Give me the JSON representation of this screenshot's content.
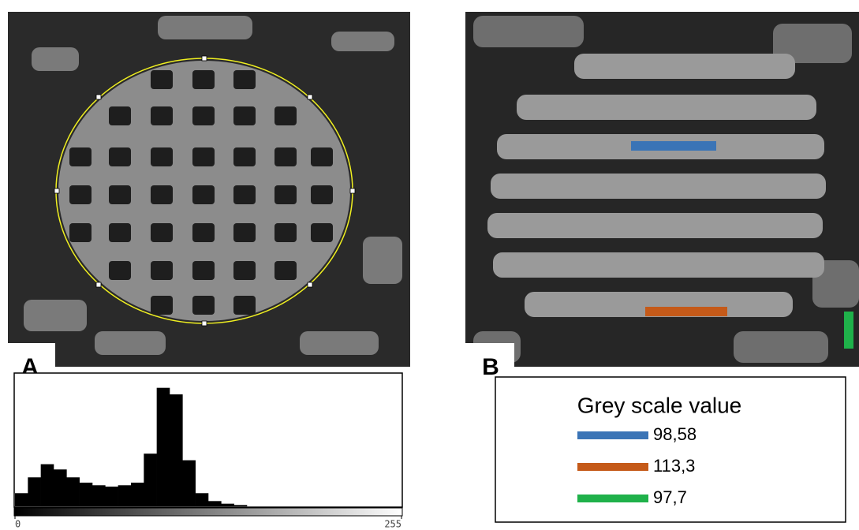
{
  "panels": {
    "a_label": "A",
    "b_label": "B"
  },
  "chart_data": {
    "type": "histogram",
    "bins": [
      0,
      8.5,
      17,
      25.5,
      34,
      42.5,
      51,
      59.5,
      68,
      76.5,
      85,
      93.5,
      102,
      110.5,
      119,
      127.5,
      136,
      144.5,
      153,
      161.5,
      170,
      178.5,
      187,
      195.5,
      204,
      212.5,
      221,
      229.5,
      238,
      246.5,
      255
    ],
    "values": [
      10,
      22,
      32,
      28,
      22,
      18,
      16,
      15,
      16,
      18,
      40,
      90,
      85,
      35,
      10,
      4,
      2,
      1,
      0,
      0,
      0,
      0,
      0,
      0,
      0,
      0,
      0,
      0,
      0,
      0
    ],
    "color": "#000000",
    "xlim": [
      0,
      255
    ],
    "xticks": [
      0,
      255
    ],
    "ylim": [
      0,
      100
    ]
  },
  "legend": {
    "title": "Grey scale value",
    "items": [
      {
        "color": "#3a74b6",
        "value": 98.58,
        "label": "98,58"
      },
      {
        "color": "#c55a19",
        "value": 113.3,
        "label": "113,3"
      },
      {
        "color": "#1fb14a",
        "value": 97.7,
        "label": "97,7"
      }
    ]
  }
}
